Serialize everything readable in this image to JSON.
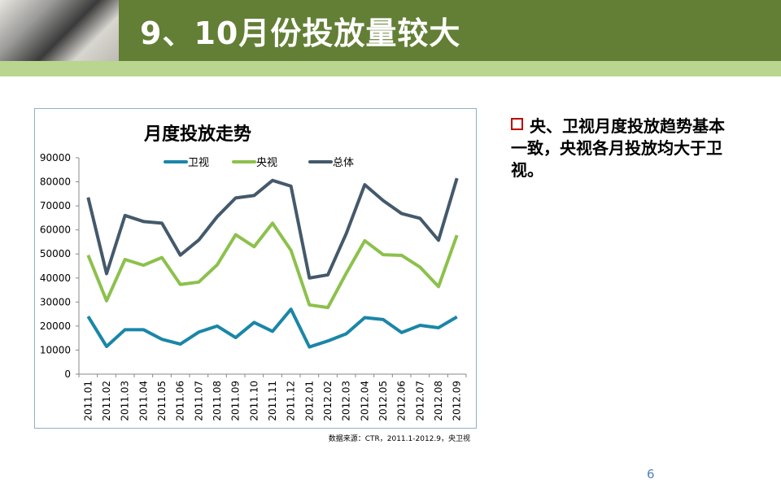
{
  "header": {
    "title": "9、10月份投放量较大"
  },
  "bullet": {
    "text": "央、卫视月度投放趋势基本一致，央视各月投放均大于卫视。",
    "icon": "hollow-square-bullet-icon"
  },
  "source": "数据来源：CTR，2011.1-2012.9，央卫视",
  "page_number": "6",
  "chart_data": {
    "type": "line",
    "title": "月度投放走势",
    "ylim": [
      0,
      90000
    ],
    "yticks": [
      "0",
      "10000",
      "20000",
      "30000",
      "40000",
      "50000",
      "60000",
      "70000",
      "80000",
      "90000"
    ],
    "legend_position": "top",
    "grid": false,
    "categories": [
      "2011.01",
      "2011.02",
      "2011.03",
      "2011.04",
      "2011.05",
      "2011.06",
      "2011.07",
      "2011.08",
      "2011.09",
      "2011.10",
      "2011.11",
      "2011.12",
      "2012.01",
      "2012.02",
      "2012.03",
      "2012.04",
      "2012.05",
      "2012.06",
      "2012.07",
      "2012.08",
      "2012.09"
    ],
    "series": [
      {
        "name": "卫视",
        "color": "#1a86a8",
        "values": [
          24000,
          11500,
          18500,
          18500,
          14500,
          12500,
          17500,
          20000,
          15200,
          21500,
          17800,
          27000,
          11300,
          13800,
          16800,
          23500,
          22700,
          17300,
          20300,
          19300,
          23800
        ]
      },
      {
        "name": "央视",
        "color": "#8cc14c",
        "values": [
          49500,
          30500,
          47700,
          45300,
          48500,
          37300,
          38300,
          45500,
          58000,
          53000,
          62800,
          51500,
          28800,
          27700,
          42000,
          55500,
          49700,
          49400,
          44500,
          36400,
          57800
        ]
      },
      {
        "name": "总体",
        "color": "#44596b",
        "values": [
          73500,
          41800,
          66000,
          63500,
          62800,
          49500,
          55800,
          65500,
          73300,
          74300,
          80600,
          78200,
          40000,
          41300,
          58500,
          78800,
          72200,
          66800,
          64800,
          55700,
          81500
        ]
      }
    ]
  }
}
